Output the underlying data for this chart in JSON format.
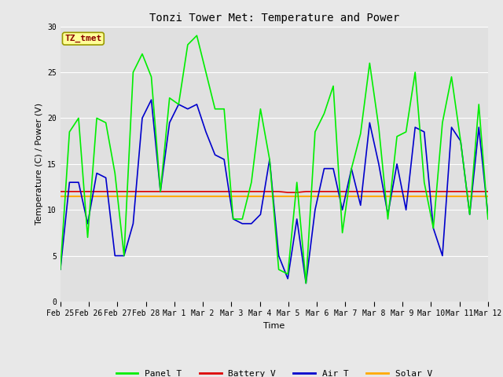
{
  "title": "Tonzi Tower Met: Temperature and Power",
  "xlabel": "Time",
  "ylabel": "Temperature (C) / Power (V)",
  "ylim": [
    0,
    30
  ],
  "fig_bg_color": "#e8e8e8",
  "plot_bg_color": "#e0e0e0",
  "annotation_text": "TZ_tmet",
  "annotation_color": "#8b0000",
  "annotation_bg": "#ffff99",
  "annotation_edge": "#999900",
  "tick_labels": [
    "Feb 25",
    "Feb 26",
    "Feb 27",
    "Feb 28",
    "Mar 1",
    "Mar 2",
    "Mar 3",
    "Mar 4",
    "Mar 5",
    "Mar 6",
    "Mar 7",
    "Mar 8",
    "Mar 9",
    "Mar 10",
    "Mar 11",
    "Mar 12"
  ],
  "series": {
    "panel_t": {
      "color": "#00ee00",
      "label": "Panel T",
      "linewidth": 1.2,
      "values": [
        3.5,
        18.5,
        20.0,
        7.0,
        20.0,
        19.5,
        14.0,
        5.0,
        25.0,
        27.0,
        24.5,
        12.0,
        22.2,
        21.5,
        28.0,
        29.0,
        25.0,
        21.0,
        21.0,
        9.0,
        9.0,
        13.0,
        21.0,
        15.5,
        3.5,
        3.0,
        13.0,
        2.0,
        18.5,
        20.5,
        23.5,
        7.5,
        14.5,
        18.3,
        26.0,
        19.0,
        9.0,
        18.0,
        18.5,
        25.0,
        13.0,
        8.0,
        19.5,
        24.5,
        17.5,
        9.5,
        21.5,
        9.0
      ]
    },
    "battery_v": {
      "color": "#dd0000",
      "label": "Battery V",
      "linewidth": 1.2,
      "values": [
        12.0,
        12.0,
        12.0,
        12.0,
        12.0,
        12.0,
        12.0,
        12.0,
        12.0,
        12.0,
        12.0,
        12.0,
        12.0,
        12.0,
        12.0,
        12.0,
        12.0,
        12.0,
        12.0,
        12.0,
        12.0,
        12.0,
        12.0,
        12.0,
        12.0,
        11.9,
        11.9,
        12.0,
        12.0,
        12.0,
        12.0,
        12.0,
        12.0,
        12.0,
        12.0,
        12.0,
        12.0,
        12.0,
        12.0,
        12.0,
        12.0,
        12.0,
        12.0,
        12.0,
        12.0,
        12.0,
        12.0,
        12.0
      ]
    },
    "air_t": {
      "color": "#0000cc",
      "label": "Air T",
      "linewidth": 1.2,
      "values": [
        3.5,
        13.0,
        13.0,
        8.5,
        14.0,
        13.5,
        5.0,
        5.0,
        8.5,
        20.0,
        22.0,
        12.0,
        19.5,
        21.5,
        21.0,
        21.5,
        18.5,
        16.0,
        15.5,
        9.0,
        8.5,
        8.5,
        9.5,
        15.5,
        5.0,
        2.5,
        9.0,
        2.0,
        10.0,
        14.5,
        14.5,
        10.0,
        14.5,
        10.5,
        19.5,
        15.0,
        9.5,
        15.0,
        10.0,
        19.0,
        18.5,
        8.0,
        5.0,
        19.0,
        17.5,
        9.5,
        19.0,
        9.5
      ]
    },
    "solar_v": {
      "color": "#ffaa00",
      "label": "Solar V",
      "linewidth": 1.5,
      "values": [
        11.5,
        11.5,
        11.5,
        11.5,
        11.5,
        11.5,
        11.5,
        11.5,
        11.5,
        11.5,
        11.5,
        11.5,
        11.5,
        11.5,
        11.5,
        11.5,
        11.5,
        11.5,
        11.5,
        11.5,
        11.5,
        11.5,
        11.5,
        11.5,
        11.5,
        11.5,
        11.5,
        11.5,
        11.5,
        11.5,
        11.5,
        11.5,
        11.5,
        11.5,
        11.5,
        11.5,
        11.5,
        11.5,
        11.5,
        11.5,
        11.5,
        11.5,
        11.5,
        11.5,
        11.5,
        11.5,
        11.5,
        11.5
      ]
    }
  },
  "yticks": [
    0,
    5,
    10,
    15,
    20,
    25,
    30
  ],
  "grid_color": "#ffffff",
  "title_fontsize": 10,
  "axis_label_fontsize": 8,
  "tick_fontsize": 7
}
